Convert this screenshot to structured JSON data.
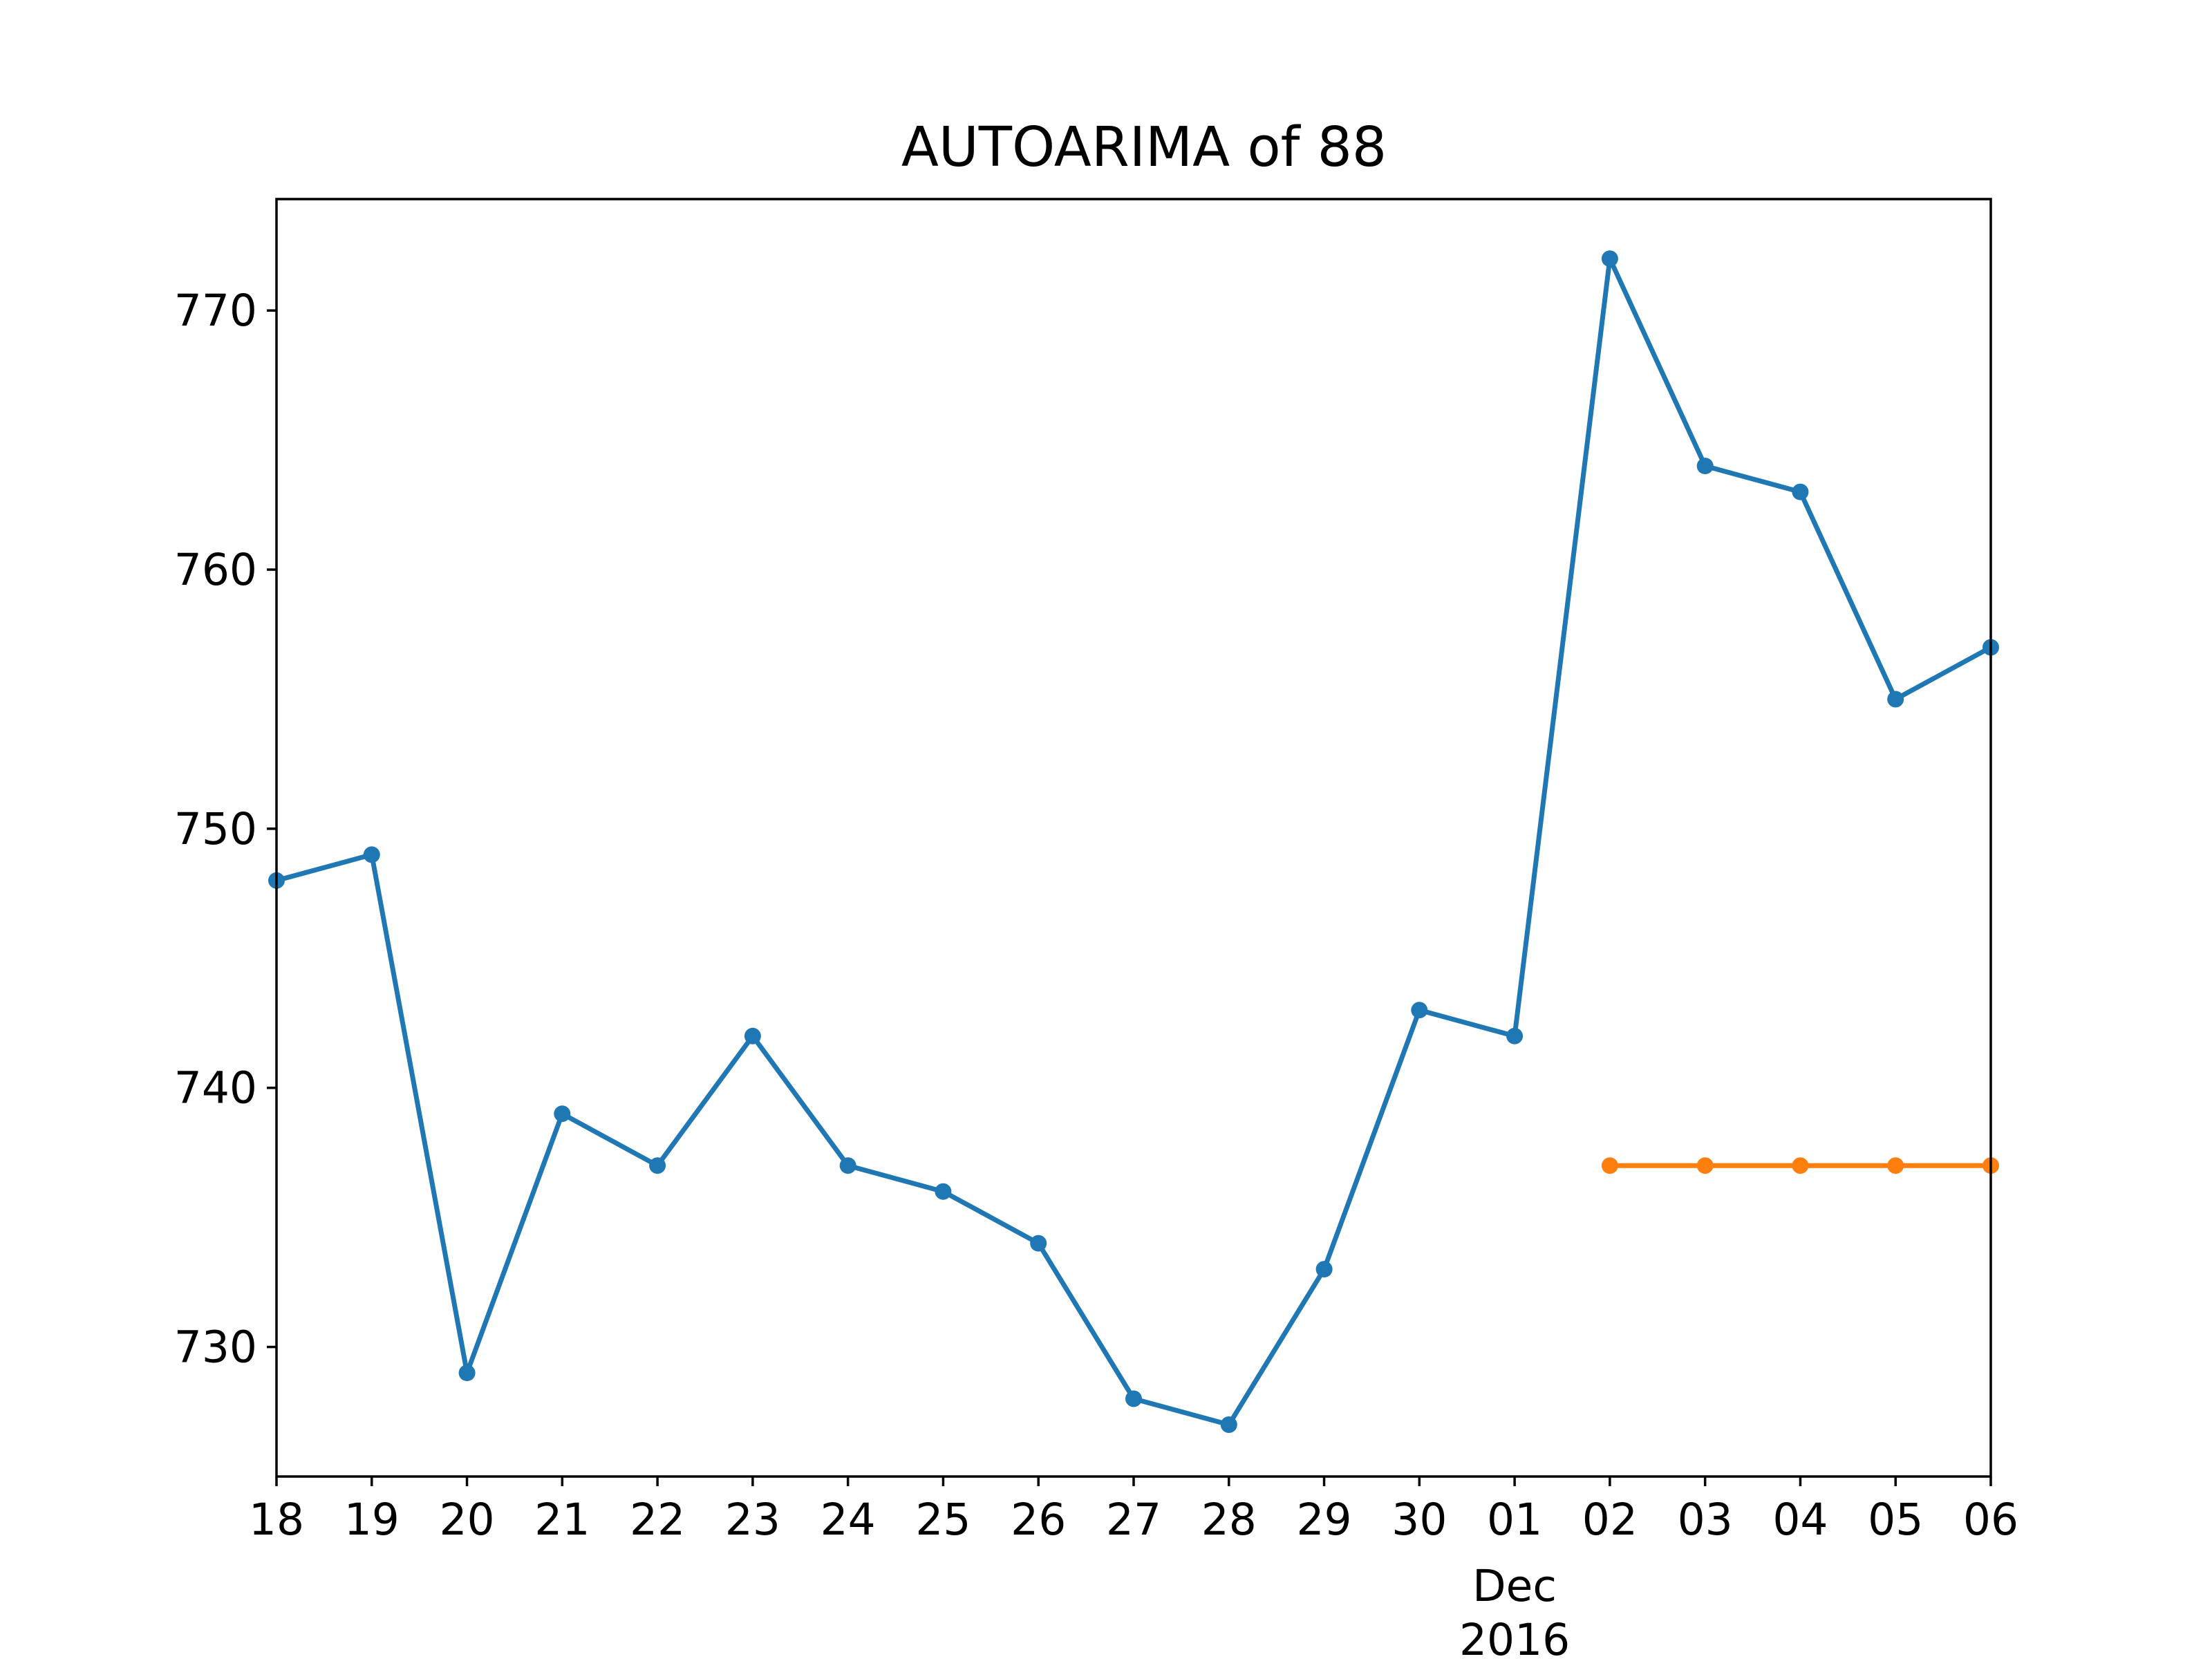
{
  "chart_data": {
    "type": "line",
    "title": "AUTOARIMA of 88",
    "xlabel": "",
    "ylabel": "",
    "x": [
      "2016-11-18",
      "2016-11-19",
      "2016-11-20",
      "2016-11-21",
      "2016-11-22",
      "2016-11-23",
      "2016-11-24",
      "2016-11-25",
      "2016-11-26",
      "2016-11-27",
      "2016-11-28",
      "2016-11-29",
      "2016-11-30",
      "2016-12-01",
      "2016-12-02",
      "2016-12-03",
      "2016-12-04",
      "2016-12-05",
      "2016-12-06"
    ],
    "x_tick_labels": [
      "18",
      "19",
      "20",
      "21",
      "22",
      "23",
      "24",
      "25",
      "26",
      "27",
      "28",
      "29",
      "30",
      "01",
      "02",
      "03",
      "04",
      "05",
      "06"
    ],
    "x_major_label": {
      "at": "2016-12-01",
      "lines": [
        "Dec",
        "2016"
      ]
    },
    "xlim": [
      "2016-11-18",
      "2016-12-06"
    ],
    "ylim": [
      725,
      774.3
    ],
    "yticks": [
      730,
      740,
      750,
      760,
      770
    ],
    "grid": false,
    "series": [
      {
        "color": "#1f77b4",
        "x": [
          "2016-11-18",
          "2016-11-19",
          "2016-11-20",
          "2016-11-21",
          "2016-11-22",
          "2016-11-23",
          "2016-11-24",
          "2016-11-25",
          "2016-11-26",
          "2016-11-27",
          "2016-11-28",
          "2016-11-29",
          "2016-11-30",
          "2016-12-01",
          "2016-12-02",
          "2016-12-03",
          "2016-12-04",
          "2016-12-05",
          "2016-12-06"
        ],
        "values": [
          748,
          749,
          729,
          739,
          737,
          742,
          737,
          736,
          734,
          728,
          727,
          733,
          743,
          742,
          772,
          764,
          763,
          755,
          757
        ]
      },
      {
        "color": "#ff7f0e",
        "x": [
          "2016-12-02",
          "2016-12-03",
          "2016-12-04",
          "2016-12-05",
          "2016-12-06"
        ],
        "values": [
          737,
          737,
          737,
          737,
          737
        ]
      }
    ]
  }
}
